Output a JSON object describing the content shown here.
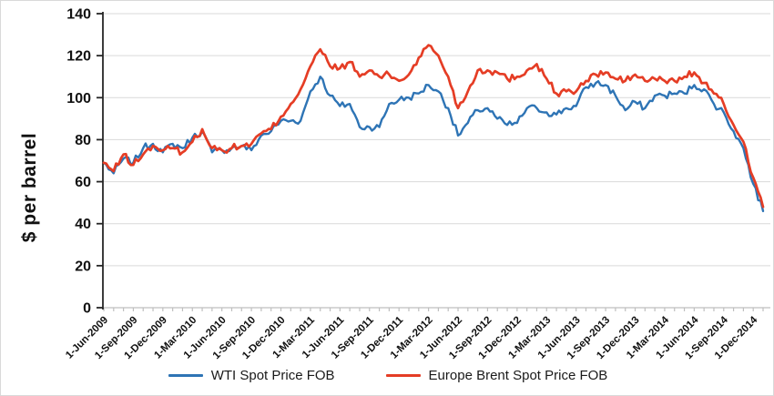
{
  "chart_data": {
    "type": "line",
    "title": "",
    "xlabel": "",
    "ylabel": "$ per barrel",
    "ylim": [
      0,
      140
    ],
    "y_ticks": [
      0,
      20,
      40,
      60,
      80,
      100,
      120,
      140
    ],
    "grid": "horizontal",
    "legend_position": "bottom",
    "x_tick_labels": [
      "1-Jun-2009",
      "1-Sep-2009",
      "1-Dec-2009",
      "1-Mar-2010",
      "1-Jun-2010",
      "1-Sep-2010",
      "1-Dec-2010",
      "1-Mar-2011",
      "1-Jun-2011",
      "1-Sep-2011",
      "1-Dec-2011",
      "1-Mar-2012",
      "1-Jun-2012",
      "1-Sep-2012",
      "1-Dec-2012",
      "1-Mar-2013",
      "1-Jun-2013",
      "1-Sep-2013",
      "1-Dec-2013",
      "1-Mar-2014",
      "1-Jun-2014",
      "1-Sep-2014",
      "1-Dec-2014"
    ],
    "x_tick_every_n_points": 3,
    "x": [
      "1-Jun-2009",
      "1-Jul-2009",
      "1-Aug-2009",
      "1-Sep-2009",
      "1-Oct-2009",
      "1-Nov-2009",
      "1-Dec-2009",
      "1-Jan-2010",
      "1-Feb-2010",
      "1-Mar-2010",
      "1-Apr-2010",
      "1-May-2010",
      "1-Jun-2010",
      "1-Jul-2010",
      "1-Aug-2010",
      "1-Sep-2010",
      "1-Oct-2010",
      "1-Nov-2010",
      "1-Dec-2010",
      "1-Jan-2011",
      "1-Feb-2011",
      "1-Mar-2011",
      "1-Apr-2011",
      "1-May-2011",
      "1-Jun-2011",
      "1-Jul-2011",
      "1-Aug-2011",
      "1-Sep-2011",
      "1-Oct-2011",
      "1-Nov-2011",
      "1-Dec-2011",
      "1-Jan-2012",
      "1-Feb-2012",
      "1-Mar-2012",
      "1-Apr-2012",
      "1-May-2012",
      "1-Jun-2012",
      "1-Jul-2012",
      "1-Aug-2012",
      "1-Sep-2012",
      "1-Oct-2012",
      "1-Nov-2012",
      "1-Dec-2012",
      "1-Jan-2013",
      "1-Feb-2013",
      "1-Mar-2013",
      "1-Apr-2013",
      "1-May-2013",
      "1-Jun-2013",
      "1-Jul-2013",
      "1-Aug-2013",
      "1-Sep-2013",
      "1-Oct-2013",
      "1-Nov-2013",
      "1-Dec-2013",
      "1-Jan-2014",
      "1-Feb-2014",
      "1-Mar-2014",
      "1-Apr-2014",
      "1-May-2014",
      "1-Jun-2014",
      "1-Jul-2014",
      "1-Aug-2014",
      "1-Sep-2014",
      "1-Oct-2014",
      "1-Nov-2014",
      "1-Dec-2014",
      "15-Jan-2015"
    ],
    "series": [
      {
        "name": "WTI Spot Price FOB",
        "color": "#2e74b5",
        "values": [
          69,
          64,
          71,
          69,
          76,
          78,
          74,
          78,
          76,
          81,
          84,
          74,
          75,
          76,
          77,
          75,
          82,
          84,
          89,
          89,
          89,
          103,
          110,
          101,
          96,
          97,
          86,
          86,
          86,
          97,
          99,
          100,
          102,
          106,
          103,
          95,
          82,
          88,
          94,
          95,
          90,
          87,
          88,
          95,
          95,
          93,
          92,
          95,
          96,
          105,
          107,
          106,
          101,
          94,
          98,
          95,
          101,
          101,
          102,
          102,
          106,
          104,
          97,
          93,
          84,
          76,
          59,
          46
        ]
      },
      {
        "name": "Europe Brent Spot Price FOB",
        "color": "#e53d25",
        "values": [
          69,
          65,
          73,
          68,
          73,
          77,
          75,
          76,
          74,
          79,
          85,
          76,
          75,
          76,
          77,
          78,
          83,
          85,
          91,
          97,
          104,
          115,
          123,
          115,
          114,
          117,
          110,
          113,
          110,
          111,
          108,
          111,
          119,
          125,
          120,
          110,
          95,
          103,
          113,
          113,
          112,
          109,
          110,
          113,
          116,
          109,
          102,
          103,
          103,
          108,
          111,
          112,
          109,
          108,
          111,
          108,
          109,
          108,
          108,
          110,
          112,
          107,
          102,
          97,
          87,
          79,
          62,
          48
        ]
      }
    ],
    "axis_colors": {
      "gridline": "#d9d9d9",
      "x_axis": "#bfbfbf",
      "y_axis": "#262626",
      "tick_label": "#111111"
    }
  }
}
